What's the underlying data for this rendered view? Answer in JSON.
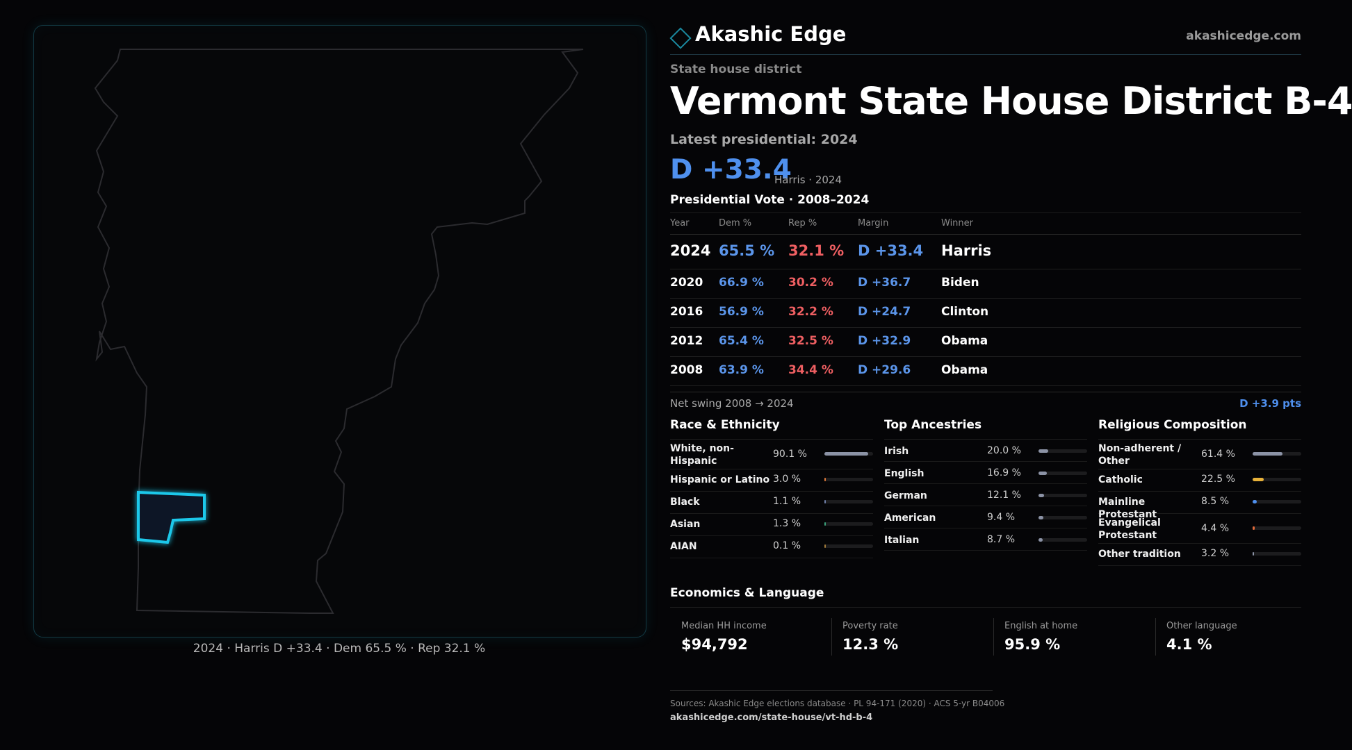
{
  "brand": {
    "name": "Akashic Edge",
    "url": "akashicedge.com",
    "icon": "diamond-icon"
  },
  "kicker": "State house district",
  "title": "Vermont  State House District B-4",
  "latest_label": "Latest presidential: 2024",
  "headline_margin": "D +33.4",
  "headline_sub": "Harris · 2024",
  "pres_title": "Presidential Vote · 2008–2024",
  "table_headers": {
    "year": "Year",
    "dem": "Dem %",
    "rep": "Rep %",
    "margin": "Margin",
    "winner": "Winner"
  },
  "results": [
    {
      "year": "2024",
      "dem": "65.5 %",
      "rep": "32.1 %",
      "margin": "D +33.4",
      "winner": "Harris"
    },
    {
      "year": "2020",
      "dem": "66.9 %",
      "rep": "30.2 %",
      "margin": "D +36.7",
      "winner": "Biden"
    },
    {
      "year": "2016",
      "dem": "56.9 %",
      "rep": "32.2 %",
      "margin": "D +24.7",
      "winner": "Clinton"
    },
    {
      "year": "2012",
      "dem": "65.4 %",
      "rep": "32.5 %",
      "margin": "D +32.9",
      "winner": "Obama"
    },
    {
      "year": "2008",
      "dem": "63.9 %",
      "rep": "34.4 %",
      "margin": "D +29.6",
      "winner": "Obama"
    }
  ],
  "swing": {
    "label": "Net swing 2008 → 2024",
    "value": "D +3.9 pts"
  },
  "race": {
    "title": "Race & Ethnicity",
    "items": [
      {
        "label": "White, non-Hispanic",
        "value": "90.1 %",
        "share": 0.901,
        "color": "#8c93a6"
      },
      {
        "label": "Hispanic or Latino",
        "value": "3.0 %",
        "share": 0.03,
        "color": "#e07a3a"
      },
      {
        "label": "Black",
        "value": "1.1 %",
        "share": 0.011,
        "color": "#6f7fa8"
      },
      {
        "label": "Asian",
        "value": "1.3 %",
        "share": 0.013,
        "color": "#3aa07a"
      },
      {
        "label": "AIAN",
        "value": "0.1 %",
        "share": 0.001,
        "color": "#a07a3a"
      }
    ]
  },
  "ancestry": {
    "title": "Top Ancestries",
    "items": [
      {
        "label": "Irish",
        "value": "20.0 %",
        "share": 0.2,
        "color": "#8c93a6"
      },
      {
        "label": "English",
        "value": "16.9 %",
        "share": 0.169,
        "color": "#8c93a6"
      },
      {
        "label": "German",
        "value": "12.1 %",
        "share": 0.121,
        "color": "#8c93a6"
      },
      {
        "label": "American",
        "value": "9.4 %",
        "share": 0.094,
        "color": "#8c93a6"
      },
      {
        "label": "Italian",
        "value": "8.7 %",
        "share": 0.087,
        "color": "#8c93a6"
      }
    ]
  },
  "religion": {
    "title": "Religious Composition",
    "items": [
      {
        "label": "Non-adherent / Other",
        "value": "61.4 %",
        "share": 0.614,
        "color": "#8c93a6"
      },
      {
        "label": "Catholic",
        "value": "22.5 %",
        "share": 0.225,
        "color": "#e8b23a"
      },
      {
        "label": "Mainline Protestant",
        "value": "8.5 %",
        "share": 0.085,
        "color": "#4f90ee"
      },
      {
        "label": "Evangelical Protestant",
        "value": "4.4 %",
        "share": 0.044,
        "color": "#e06a3a"
      },
      {
        "label": "Other tradition",
        "value": "3.2 %",
        "share": 0.032,
        "color": "#8c93a6"
      }
    ]
  },
  "economics": {
    "title": "Economics & Language",
    "items": [
      {
        "label": "Median HH income",
        "value": "$94,792"
      },
      {
        "label": "Poverty rate",
        "value": "12.3 %"
      },
      {
        "label": "English at home",
        "value": "95.9 %"
      },
      {
        "label": "Other language",
        "value": "4.1 %"
      }
    ]
  },
  "map_caption": "2024 · Harris D +33.4 · Dem 65.5 % · Rep 32.1 %",
  "sources": "Sources: Akashic Edge elections database · PL 94-171 (2020) · ACS 5-yr B04006",
  "source_url": "akashicedge.com/state-house/vt-hd-b-4"
}
